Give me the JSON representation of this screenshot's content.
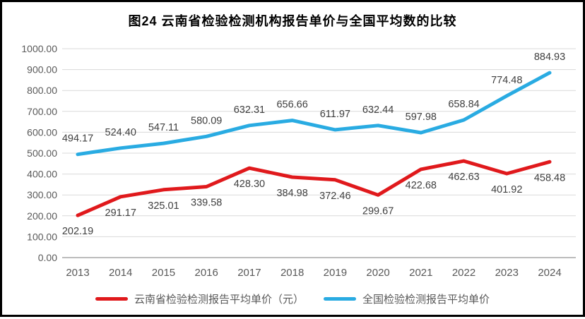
{
  "page": {
    "background": "#ffffff",
    "border_color": "#000000"
  },
  "chart_data": {
    "type": "line",
    "title": "图24 云南省检验检测机构报告单价与全国平均数的比较",
    "categories": [
      "2013",
      "2014",
      "2015",
      "2016",
      "2017",
      "2018",
      "2019",
      "2020",
      "2021",
      "2022",
      "2023",
      "2024"
    ],
    "series": [
      {
        "name": "云南省检验检测报告平均单价（元）",
        "color": "#e0191c",
        "label_position": "below",
        "values": [
          202.19,
          291.17,
          325.01,
          339.58,
          428.3,
          384.98,
          372.46,
          299.67,
          422.68,
          462.63,
          401.92,
          458.48
        ]
      },
      {
        "name": "全国检验检测报告平均单价",
        "color": "#29abe2",
        "label_position": "above",
        "values": [
          494.17,
          524.4,
          547.11,
          580.09,
          632.31,
          656.66,
          611.97,
          632.44,
          597.98,
          658.84,
          774.48,
          884.93
        ]
      }
    ],
    "y_axis": {
      "min": 0,
      "max": 1000,
      "step": 100,
      "decimals": 2
    },
    "xlabel": "",
    "ylabel": "",
    "grid": true,
    "legend_position": "bottom",
    "colors": {
      "gridline": "#d9d9d9",
      "axis_line": "#a6a6a6",
      "tick_text": "#595959",
      "data_label": "#3f3f3f",
      "title_text": "#000000"
    }
  }
}
